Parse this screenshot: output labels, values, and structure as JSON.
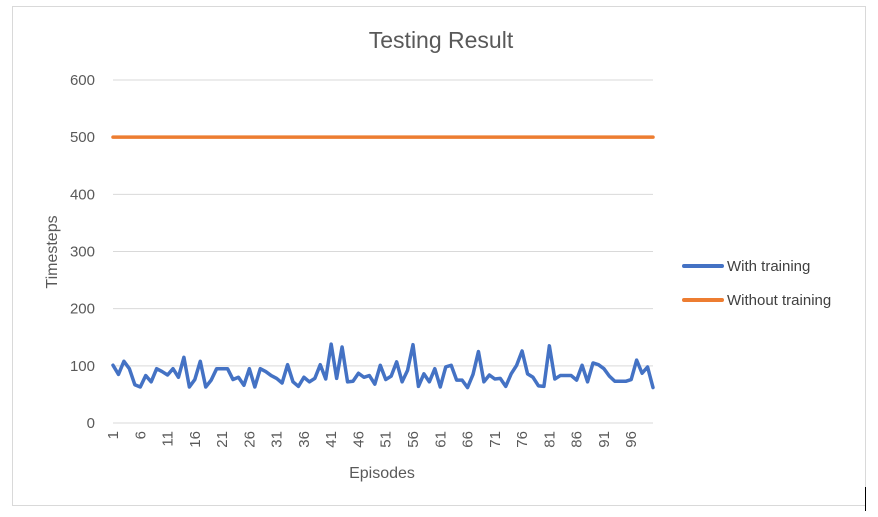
{
  "chart_data": {
    "type": "line",
    "title": "Testing Result",
    "xlabel": "Episodes",
    "ylabel": "Timesteps",
    "ylim": [
      0,
      600
    ],
    "yticks": [
      "0",
      "100",
      "200",
      "300",
      "400",
      "500",
      "600"
    ],
    "xticks": [
      "1",
      "6",
      "11",
      "16",
      "21",
      "26",
      "31",
      "36",
      "41",
      "46",
      "51",
      "56",
      "61",
      "66",
      "71",
      "76",
      "81",
      "86",
      "91",
      "96"
    ],
    "grid": "horizontal",
    "legend_position": "right",
    "x": [
      1,
      2,
      3,
      4,
      5,
      6,
      7,
      8,
      9,
      10,
      11,
      12,
      13,
      14,
      15,
      16,
      17,
      18,
      19,
      20,
      21,
      22,
      23,
      24,
      25,
      26,
      27,
      28,
      29,
      30,
      31,
      32,
      33,
      34,
      35,
      36,
      37,
      38,
      39,
      40,
      41,
      42,
      43,
      44,
      45,
      46,
      47,
      48,
      49,
      50,
      51,
      52,
      53,
      54,
      55,
      56,
      57,
      58,
      59,
      60,
      61,
      62,
      63,
      64,
      65,
      66,
      67,
      68,
      69,
      70,
      71,
      72,
      73,
      74,
      75,
      76,
      77,
      78,
      79,
      80,
      81,
      82,
      83,
      84,
      85,
      86,
      87,
      88,
      89,
      90,
      91,
      92,
      93,
      94,
      95,
      96,
      97,
      98,
      99,
      100
    ],
    "series": [
      {
        "name": "With training",
        "color": "#4472c4",
        "values": [
          101,
          85,
          108,
          95,
          67,
          63,
          83,
          72,
          95,
          90,
          84,
          95,
          80,
          115,
          63,
          76,
          108,
          63,
          75,
          95,
          95,
          95,
          76,
          80,
          66,
          95,
          63,
          95,
          90,
          83,
          78,
          70,
          102,
          72,
          64,
          80,
          72,
          78,
          102,
          77,
          138,
          78,
          133,
          72,
          73,
          87,
          80,
          83,
          68,
          101,
          76,
          82,
          107,
          72,
          92,
          137,
          64,
          86,
          72,
          95,
          63,
          98,
          101,
          75,
          75,
          62,
          85,
          125,
          72,
          84,
          77,
          78,
          64,
          86,
          101,
          126,
          86,
          80,
          65,
          64,
          135,
          77,
          83,
          83,
          83,
          75,
          101,
          72,
          105,
          102,
          95,
          82,
          73,
          73,
          73,
          76,
          110,
          87,
          98,
          62
        ]
      },
      {
        "name": "Without training",
        "color": "#ed7d31",
        "values": [
          500,
          500,
          500,
          500,
          500,
          500,
          500,
          500,
          500,
          500,
          500,
          500,
          500,
          500,
          500,
          500,
          500,
          500,
          500,
          500,
          500,
          500,
          500,
          500,
          500,
          500,
          500,
          500,
          500,
          500,
          500,
          500,
          500,
          500,
          500,
          500,
          500,
          500,
          500,
          500,
          500,
          500,
          500,
          500,
          500,
          500,
          500,
          500,
          500,
          500,
          500,
          500,
          500,
          500,
          500,
          500,
          500,
          500,
          500,
          500,
          500,
          500,
          500,
          500,
          500,
          500,
          500,
          500,
          500,
          500,
          500,
          500,
          500,
          500,
          500,
          500,
          500,
          500,
          500,
          500,
          500,
          500,
          500,
          500,
          500,
          500,
          500,
          500,
          500,
          500,
          500,
          500,
          500,
          500,
          500,
          500,
          500,
          500,
          500,
          500
        ]
      }
    ]
  }
}
